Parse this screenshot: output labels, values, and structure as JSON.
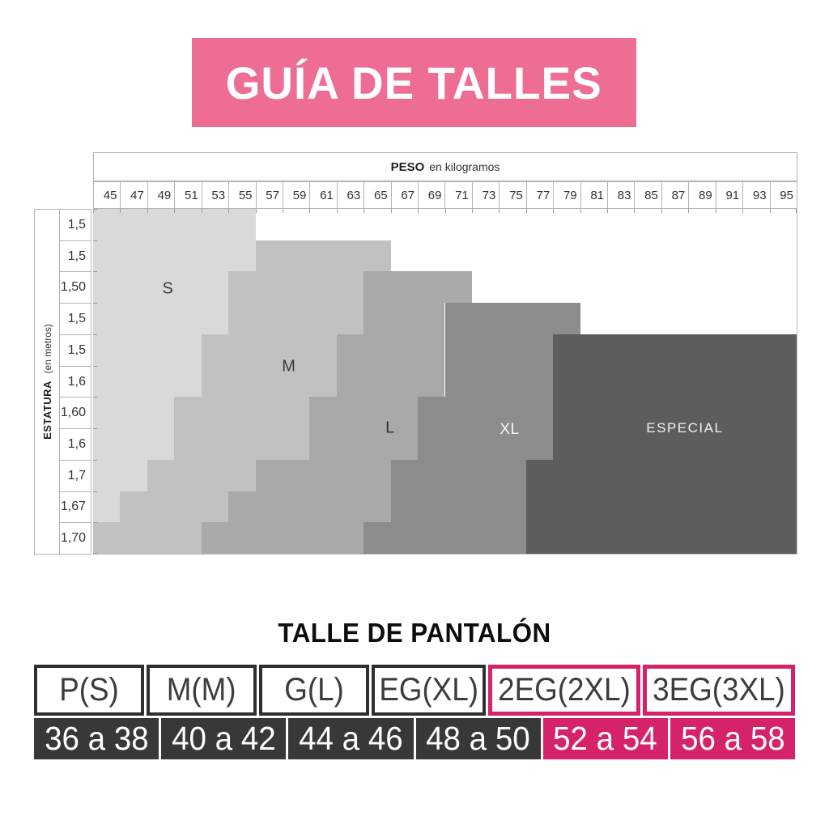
{
  "banner": {
    "title": "GUÍA DE TALLES",
    "bg": "#ee6d92"
  },
  "weight_header": {
    "bold": "PESO",
    "rest": "en kilogramos"
  },
  "height_header": {
    "bold": "ESTATURA",
    "rest": "(en metros)"
  },
  "chart_data": {
    "type": "heatmap",
    "title": "Size regions by weight and height",
    "xlabel": "PESO en kilogramos",
    "ylabel": "ESTATURA (en metros)",
    "x_ticks": [
      45,
      47,
      49,
      51,
      53,
      55,
      57,
      59,
      61,
      63,
      65,
      67,
      69,
      71,
      73,
      75,
      77,
      79,
      81,
      83,
      85,
      87,
      89,
      91,
      93,
      95
    ],
    "y_ticks": [
      "1,5",
      "1,5",
      "1,50",
      "1,5",
      "1,5",
      "1,6",
      "1,60",
      "1,6",
      "1,7",
      "1,67",
      "1,70"
    ],
    "legend": [
      "S",
      "M",
      "L",
      "XL",
      "ESPECIAL"
    ],
    "sizes": {
      "S": {
        "color": "#d9d9d9",
        "label_color": "#3a3a3a",
        "x": "10.6%",
        "y": "23.2%",
        "font": 20,
        "ls": "0px"
      },
      "M": {
        "color": "#c1c1c1",
        "label_color": "#3a3a3a",
        "x": "27.8%",
        "y": "45.7%",
        "font": 20,
        "ls": "0px"
      },
      "L": {
        "color": "#a9a9a9",
        "label_color": "#353535",
        "x": "42.2%",
        "y": "63.7%",
        "font": 20,
        "ls": "0px"
      },
      "XL": {
        "color": "#8c8c8c",
        "label_color": "#f5f5f5",
        "x": "59.2%",
        "y": "64.2%",
        "font": 19,
        "ls": "0.5px"
      },
      "ESPECIAL": {
        "color": "#5d5d5d",
        "label_color": "#f0f0f0",
        "x": "84.1%",
        "y": "63.7%",
        "font": 17,
        "ls": "1.5px"
      }
    },
    "rows": [
      {
        "height": "1,5",
        "regions": [
          {
            "size": "S",
            "from_kg": 45,
            "to_kg": 55
          }
        ]
      },
      {
        "height": "1,5",
        "regions": [
          {
            "size": "S",
            "from_kg": 45,
            "to_kg": 55
          },
          {
            "size": "M",
            "from_kg": 57,
            "to_kg": 65
          }
        ]
      },
      {
        "height": "1,50",
        "regions": [
          {
            "size": "S",
            "from_kg": 45,
            "to_kg": 53
          },
          {
            "size": "M",
            "from_kg": 55,
            "to_kg": 63
          },
          {
            "size": "L",
            "from_kg": 65,
            "to_kg": 71
          }
        ]
      },
      {
        "height": "1,5",
        "regions": [
          {
            "size": "S",
            "from_kg": 45,
            "to_kg": 53
          },
          {
            "size": "M",
            "from_kg": 55,
            "to_kg": 63
          },
          {
            "size": "L",
            "from_kg": 65,
            "to_kg": 69
          },
          {
            "size": "XL",
            "from_kg": 71,
            "to_kg": 79
          }
        ]
      },
      {
        "height": "1,5",
        "regions": [
          {
            "size": "S",
            "from_kg": 45,
            "to_kg": 51
          },
          {
            "size": "M",
            "from_kg": 53,
            "to_kg": 61
          },
          {
            "size": "L",
            "from_kg": 63,
            "to_kg": 69
          },
          {
            "size": "XL",
            "from_kg": 71,
            "to_kg": 77
          },
          {
            "size": "ESPECIAL",
            "from_kg": 79,
            "to_kg": 95
          }
        ]
      },
      {
        "height": "1,6",
        "regions": [
          {
            "size": "S",
            "from_kg": 45,
            "to_kg": 51
          },
          {
            "size": "M",
            "from_kg": 53,
            "to_kg": 61
          },
          {
            "size": "L",
            "from_kg": 63,
            "to_kg": 69
          },
          {
            "size": "XL",
            "from_kg": 71,
            "to_kg": 77
          },
          {
            "size": "ESPECIAL",
            "from_kg": 79,
            "to_kg": 95
          }
        ]
      },
      {
        "height": "1,60",
        "regions": [
          {
            "size": "S",
            "from_kg": 45,
            "to_kg": 49
          },
          {
            "size": "M",
            "from_kg": 51,
            "to_kg": 59
          },
          {
            "size": "L",
            "from_kg": 61,
            "to_kg": 67
          },
          {
            "size": "XL",
            "from_kg": 69,
            "to_kg": 77
          },
          {
            "size": "ESPECIAL",
            "from_kg": 79,
            "to_kg": 95
          }
        ]
      },
      {
        "height": "1,6",
        "regions": [
          {
            "size": "S",
            "from_kg": 45,
            "to_kg": 49
          },
          {
            "size": "M",
            "from_kg": 51,
            "to_kg": 59
          },
          {
            "size": "L",
            "from_kg": 61,
            "to_kg": 67
          },
          {
            "size": "XL",
            "from_kg": 69,
            "to_kg": 77
          },
          {
            "size": "ESPECIAL",
            "from_kg": 79,
            "to_kg": 95
          }
        ]
      },
      {
        "height": "1,7",
        "regions": [
          {
            "size": "S",
            "from_kg": 45,
            "to_kg": 47
          },
          {
            "size": "M",
            "from_kg": 49,
            "to_kg": 55
          },
          {
            "size": "L",
            "from_kg": 57,
            "to_kg": 65
          },
          {
            "size": "XL",
            "from_kg": 67,
            "to_kg": 75
          },
          {
            "size": "ESPECIAL",
            "from_kg": 77,
            "to_kg": 95
          }
        ]
      },
      {
        "height": "1,67",
        "regions": [
          {
            "size": "S",
            "from_kg": 45,
            "to_kg": 45
          },
          {
            "size": "M",
            "from_kg": 47,
            "to_kg": 53
          },
          {
            "size": "L",
            "from_kg": 55,
            "to_kg": 65
          },
          {
            "size": "XL",
            "from_kg": 67,
            "to_kg": 75
          },
          {
            "size": "ESPECIAL",
            "from_kg": 77,
            "to_kg": 95
          }
        ]
      },
      {
        "height": "1,70",
        "regions": [
          {
            "size": "M",
            "from_kg": 45,
            "to_kg": 51
          },
          {
            "size": "L",
            "from_kg": 53,
            "to_kg": 63
          },
          {
            "size": "XL",
            "from_kg": 65,
            "to_kg": 75
          },
          {
            "size": "ESPECIAL",
            "from_kg": 77,
            "to_kg": 95
          }
        ]
      }
    ]
  },
  "table": {
    "title": "TALLE DE PANTALÓN",
    "columns": [
      {
        "size": "P(S)",
        "range": "36 a 38",
        "accent": false
      },
      {
        "size": "M(M)",
        "range": "40 a 42",
        "accent": false
      },
      {
        "size": "G(L)",
        "range": "44 a 46",
        "accent": false
      },
      {
        "size": "EG(XL)",
        "range": "48 a 50",
        "accent": false
      },
      {
        "size": "2EG(2XL)",
        "range": "52 a 54",
        "accent": true
      },
      {
        "size": "3EG(3XL)",
        "range": "56 a 58",
        "accent": true
      }
    ]
  },
  "colors": {
    "banner_pink": "#ee6d92",
    "accent_magenta": "#d6226a",
    "dark_cell": "#383838",
    "header_text": "#3c3c3c"
  }
}
